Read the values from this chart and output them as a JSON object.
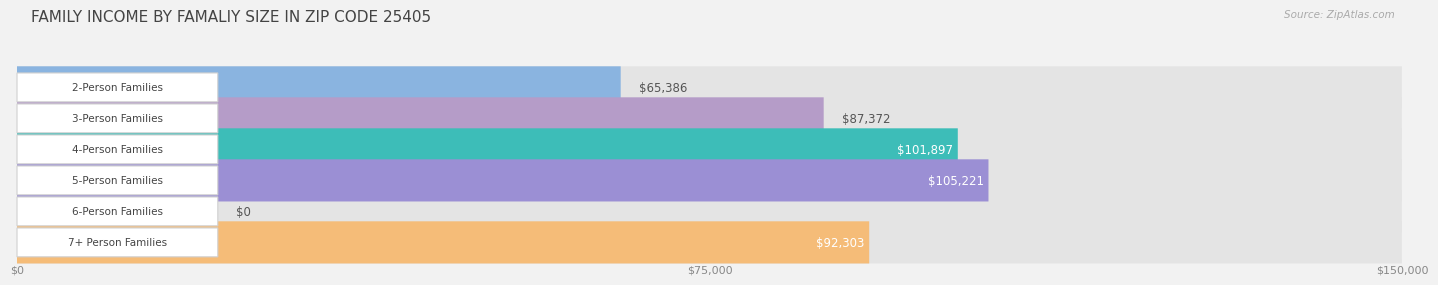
{
  "title": "FAMILY INCOME BY FAMALIY SIZE IN ZIP CODE 25405",
  "source": "Source: ZipAtlas.com",
  "categories": [
    "2-Person Families",
    "3-Person Families",
    "4-Person Families",
    "5-Person Families",
    "6-Person Families",
    "7+ Person Families"
  ],
  "values": [
    65386,
    87372,
    101897,
    105221,
    0,
    92303
  ],
  "bar_colors": [
    "#8ab4e0",
    "#b59cc8",
    "#3dbdb8",
    "#9b8fd4",
    "#f4a0b0",
    "#f5bc78"
  ],
  "label_colors": [
    "#555555",
    "#555555",
    "#ffffff",
    "#ffffff",
    "#555555",
    "#ffffff"
  ],
  "xlim": [
    0,
    150000
  ],
  "xticks": [
    0,
    75000,
    150000
  ],
  "xtick_labels": [
    "$0",
    "$75,000",
    "$150,000"
  ],
  "background_color": "#f2f2f2",
  "bar_bg_color": "#e4e4e4",
  "title_fontsize": 11,
  "bar_height": 0.68,
  "label_fontsize": 8.5,
  "cat_fontsize": 7.5
}
